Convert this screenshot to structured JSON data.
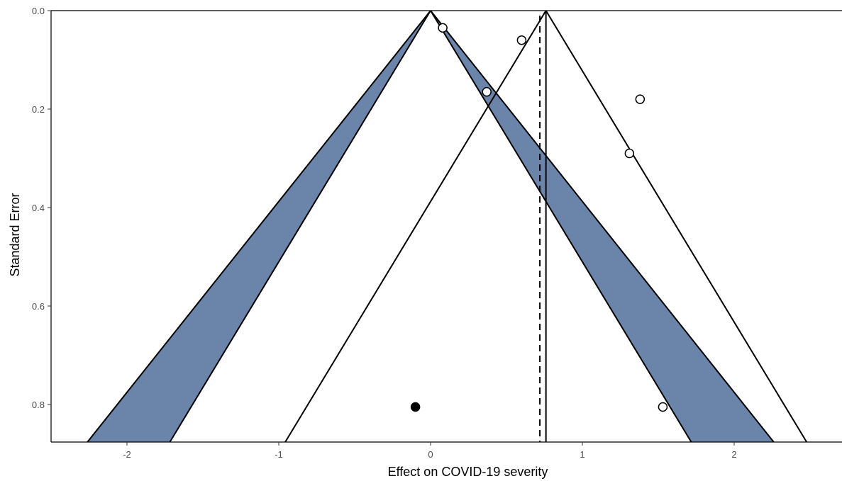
{
  "chart_data": {
    "type": "scatter",
    "title": "",
    "xlabel": "Effect on COVID-19 severity",
    "ylabel": "Standard Error",
    "xlim": [
      -2.5,
      2.65
    ],
    "ylim": [
      0.0,
      0.88
    ],
    "y_reversed": true,
    "x_ticks": [
      -2,
      -1,
      0,
      1,
      2
    ],
    "y_ticks": [
      0.0,
      0.2,
      0.4,
      0.6,
      0.8
    ],
    "x_tick_labels": [
      "-2",
      "-1",
      "0",
      "1",
      "2"
    ],
    "y_tick_labels": [
      "0.0",
      "0.2",
      "0.4",
      "0.6",
      "0.8"
    ],
    "grid": false,
    "contour_fill_color": "#6b84a9",
    "points": [
      {
        "x": 0.08,
        "y": 0.035,
        "filled": false
      },
      {
        "x": 0.6,
        "y": 0.06,
        "filled": false
      },
      {
        "x": 0.37,
        "y": 0.165,
        "filled": false
      },
      {
        "x": 1.38,
        "y": 0.18,
        "filled": false
      },
      {
        "x": 1.31,
        "y": 0.29,
        "filled": false
      },
      {
        "x": 1.53,
        "y": 0.805,
        "filled": false
      },
      {
        "x": -0.1,
        "y": 0.805,
        "filled": true
      }
    ],
    "null_funnel": {
      "center": 0.0,
      "z_inner": 1.96,
      "z_outer": 2.58
    },
    "estimate_funnel": {
      "center": 0.76,
      "z": 1.96
    },
    "pooled_estimate": 0.76,
    "adjusted_estimate": 0.72
  }
}
